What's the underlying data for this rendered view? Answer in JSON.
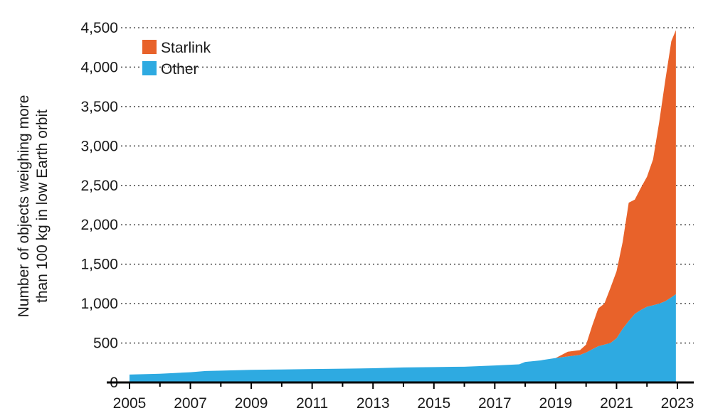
{
  "chart_data": {
    "type": "area",
    "stacked": true,
    "title": "",
    "xlabel": "",
    "ylabel_lines": [
      "Number of objects weighing more",
      "than 100 kg in low Earth orbit"
    ],
    "xlim": [
      2005,
      2023
    ],
    "ylim": [
      0,
      4500
    ],
    "x_ticks": [
      2005,
      2007,
      2009,
      2011,
      2013,
      2015,
      2017,
      2019,
      2021,
      2023
    ],
    "x_tick_labels": [
      "2005",
      "2007",
      "2009",
      "2011",
      "2013",
      "2015",
      "2017",
      "2019",
      "2021",
      "2023"
    ],
    "y_ticks": [
      0,
      500,
      1000,
      1500,
      2000,
      2500,
      3000,
      3500,
      4000,
      4500
    ],
    "y_tick_labels": [
      "0",
      "500",
      "1,000",
      "1,500",
      "2,000",
      "2,500",
      "3,000",
      "3,500",
      "4,000",
      "4,500"
    ],
    "grid": "horizontal dotted",
    "legend_position": "top-left",
    "x": [
      2005,
      2006,
      2007,
      2007.5,
      2008,
      2009,
      2010,
      2011,
      2012,
      2013,
      2014,
      2015,
      2016,
      2017,
      2017.8,
      2018,
      2018.5,
      2019,
      2019.4,
      2019.8,
      2020,
      2020.2,
      2020.4,
      2020.6,
      2020.8,
      2021,
      2021.2,
      2021.4,
      2021.6,
      2021.8,
      2022,
      2022.2,
      2022.4,
      2022.6,
      2022.8,
      2022.95
    ],
    "series": [
      {
        "name": "Other",
        "color": "#2eaae1",
        "values": [
          100,
          110,
          130,
          145,
          150,
          160,
          165,
          170,
          175,
          180,
          190,
          195,
          200,
          215,
          230,
          260,
          280,
          310,
          330,
          350,
          380,
          420,
          460,
          480,
          500,
          560,
          680,
          780,
          870,
          920,
          960,
          980,
          1000,
          1030,
          1080,
          1120
        ]
      },
      {
        "name": "Starlink",
        "color": "#e8622a",
        "values": [
          0,
          0,
          0,
          0,
          0,
          0,
          0,
          0,
          0,
          0,
          0,
          0,
          0,
          0,
          0,
          0,
          0,
          0,
          60,
          60,
          100,
          300,
          480,
          520,
          700,
          850,
          1100,
          1500,
          1450,
          1550,
          1650,
          1850,
          2300,
          2800,
          3250,
          3350
        ]
      }
    ]
  }
}
